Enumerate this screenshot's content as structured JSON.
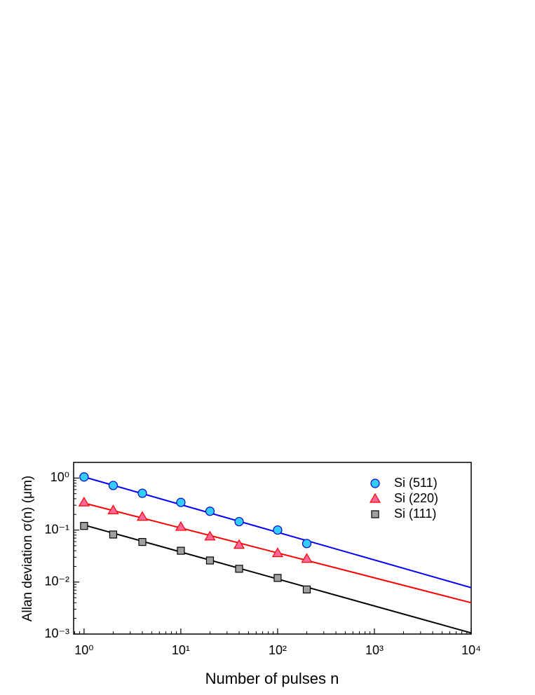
{
  "chart_data": {
    "type": "scatter",
    "xlabel": "Number of pulses n",
    "ylabel": "Allan deviation σ(n) (μm)",
    "log_x": true,
    "log_y": true,
    "xlim": [
      0.78,
      10000
    ],
    "ylim": [
      0.001,
      2
    ],
    "xticks": [
      {
        "value": 1,
        "label": "10⁰"
      },
      {
        "value": 10,
        "label": "10¹"
      },
      {
        "value": 100,
        "label": "10²"
      },
      {
        "value": 1000,
        "label": "10³"
      },
      {
        "value": 10000,
        "label": "10⁴"
      }
    ],
    "yticks": [
      {
        "value": 0.001,
        "label": "10⁻³"
      },
      {
        "value": 0.01,
        "label": "10⁻²"
      },
      {
        "value": 0.1,
        "label": "10⁻¹"
      },
      {
        "value": 1,
        "label": "10⁰"
      }
    ],
    "legend": "upper right",
    "x": [
      1,
      2,
      4,
      10,
      20,
      40,
      100,
      200
    ],
    "series": [
      {
        "name": "Si (511)",
        "color": "#33ccff",
        "edge": "#0000cc",
        "marker": "circle",
        "values": [
          1.05,
          0.72,
          0.51,
          0.34,
          0.23,
          0.145,
          0.1,
          0.055
        ]
      },
      {
        "name": "Si (220)",
        "color": "#ff6699",
        "edge": "#ff0000",
        "marker": "triangle",
        "values": [
          0.34,
          0.24,
          0.18,
          0.115,
          0.075,
          0.052,
          0.036,
          0.028
        ]
      },
      {
        "name": "Si (111)",
        "color": "#a0a0a0",
        "edge": "#000000",
        "marker": "square",
        "values": [
          0.12,
          0.082,
          0.059,
          0.04,
          0.026,
          0.018,
          0.012,
          0.0072
        ]
      }
    ],
    "fits": [
      {
        "color": "#0000ff",
        "x": [
          1,
          10000
        ],
        "values": [
          1.05,
          0.0078
        ]
      },
      {
        "color": "#ff0000",
        "x": [
          1,
          10000
        ],
        "values": [
          0.33,
          0.004
        ]
      },
      {
        "color": "#000000",
        "x": [
          1,
          10000
        ],
        "values": [
          0.125,
          0.00105
        ]
      }
    ]
  }
}
